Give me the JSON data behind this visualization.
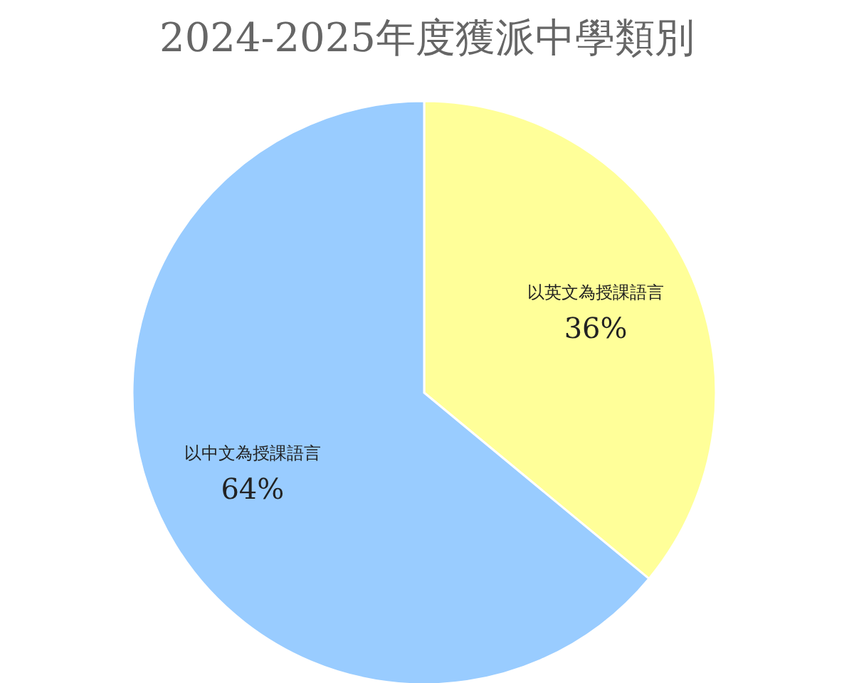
{
  "chart_data": {
    "type": "pie",
    "title": "2024-2025年度獲派中學類別",
    "categories": [
      "以英文為授課語言",
      "以中文為授課語言"
    ],
    "values": [
      36,
      64
    ],
    "value_labels": [
      "36%",
      "64%"
    ],
    "colors": [
      "#ffff99",
      "#99ccff"
    ]
  }
}
